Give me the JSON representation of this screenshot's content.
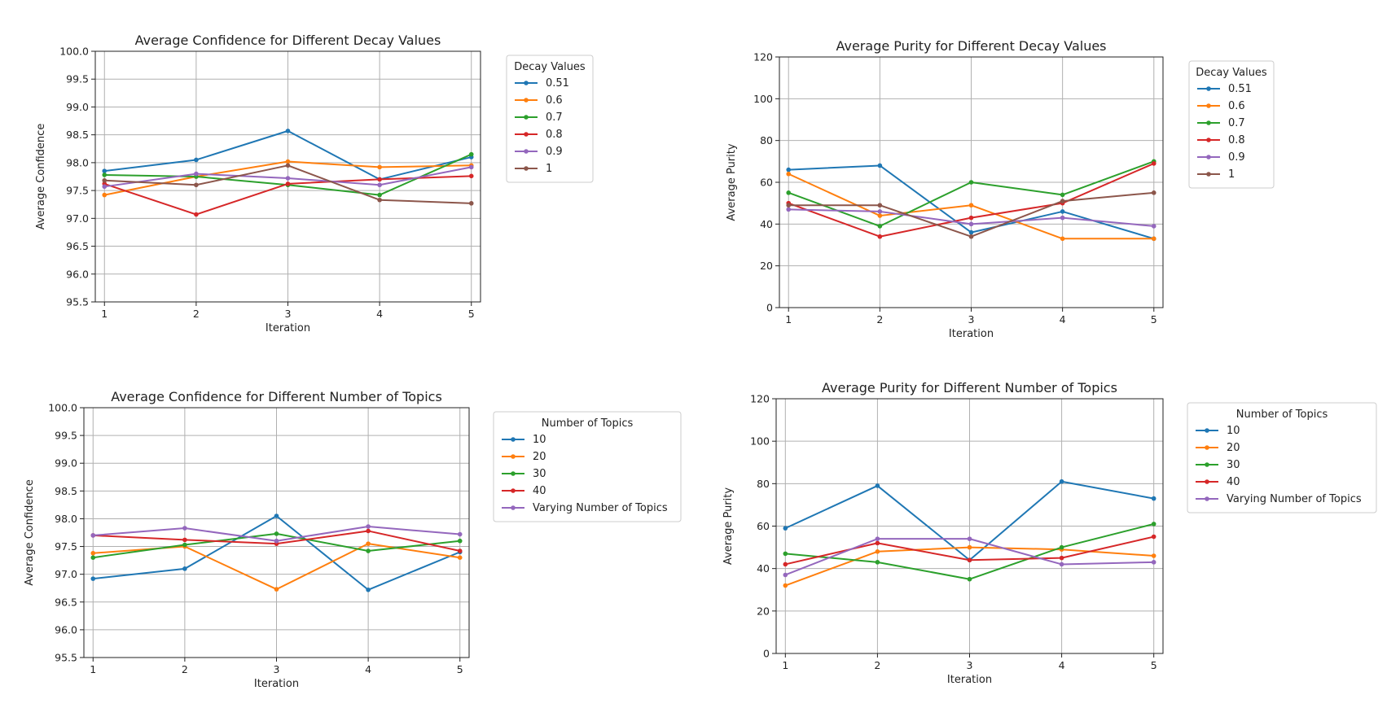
{
  "chart_data": [
    {
      "type": "line",
      "title": "Average Confidence for Different Decay Values",
      "xlabel": "Iteration",
      "ylabel": "Average Confidence",
      "x": [
        1,
        2,
        3,
        4,
        5
      ],
      "xlim": [
        0.9,
        5.1
      ],
      "ylim": [
        95.5,
        100.0
      ],
      "yticks": [
        "95.5",
        "96.0",
        "96.5",
        "97.0",
        "97.5",
        "98.0",
        "98.5",
        "99.0",
        "99.5",
        "100.0"
      ],
      "xticks": [
        "1",
        "2",
        "3",
        "4",
        "5"
      ],
      "grid": true,
      "legend_title": "Decay Values",
      "legend_position": "outside-right-top",
      "series": [
        {
          "name": "0.51",
          "color": "#1f77b4",
          "values": [
            97.85,
            98.05,
            98.57,
            97.7,
            98.1
          ]
        },
        {
          "name": "0.6",
          "color": "#ff7f0e",
          "values": [
            97.42,
            97.75,
            98.02,
            97.92,
            97.95
          ]
        },
        {
          "name": "0.7",
          "color": "#2ca02c",
          "values": [
            97.78,
            97.75,
            97.6,
            97.42,
            98.15
          ]
        },
        {
          "name": "0.8",
          "color": "#d62728",
          "values": [
            97.62,
            97.07,
            97.62,
            97.7,
            97.76
          ]
        },
        {
          "name": "0.9",
          "color": "#9467bd",
          "values": [
            97.57,
            97.8,
            97.72,
            97.6,
            97.92
          ]
        },
        {
          "name": "1",
          "color": "#8c564b",
          "values": [
            97.68,
            97.6,
            97.95,
            97.33,
            97.27
          ]
        }
      ]
    },
    {
      "type": "line",
      "title": "Average Purity for Different Decay Values",
      "xlabel": "Iteration",
      "ylabel": "Average Purity",
      "x": [
        1,
        2,
        3,
        4,
        5
      ],
      "xlim": [
        0.9,
        5.1
      ],
      "ylim": [
        0,
        120
      ],
      "yticks": [
        "0",
        "20",
        "40",
        "60",
        "80",
        "100",
        "120"
      ],
      "xticks": [
        "1",
        "2",
        "3",
        "4",
        "5"
      ],
      "grid": true,
      "legend_title": "Decay Values",
      "legend_position": "outside-right-top",
      "series": [
        {
          "name": "0.51",
          "color": "#1f77b4",
          "values": [
            66,
            68,
            36,
            46,
            33
          ]
        },
        {
          "name": "0.6",
          "color": "#ff7f0e",
          "values": [
            64,
            44,
            49,
            33,
            33
          ]
        },
        {
          "name": "0.7",
          "color": "#2ca02c",
          "values": [
            55,
            39,
            60,
            54,
            70
          ]
        },
        {
          "name": "0.8",
          "color": "#d62728",
          "values": [
            50,
            34,
            43,
            50,
            69
          ]
        },
        {
          "name": "0.9",
          "color": "#9467bd",
          "values": [
            47,
            46,
            40,
            43,
            39
          ]
        },
        {
          "name": "1",
          "color": "#8c564b",
          "values": [
            49,
            49,
            34,
            51,
            55
          ]
        }
      ]
    },
    {
      "type": "line",
      "title": "Average Confidence for Different Number of Topics",
      "xlabel": "Iteration",
      "ylabel": "Average Confidence",
      "x": [
        1,
        2,
        3,
        4,
        5
      ],
      "xlim": [
        0.9,
        5.1
      ],
      "ylim": [
        95.5,
        100.0
      ],
      "yticks": [
        "95.5",
        "96.0",
        "96.5",
        "97.0",
        "97.5",
        "98.0",
        "98.5",
        "99.0",
        "99.5",
        "100.0"
      ],
      "xticks": [
        "1",
        "2",
        "3",
        "4",
        "5"
      ],
      "grid": true,
      "legend_title": "Number of Topics",
      "legend_position": "outside-right-top",
      "series": [
        {
          "name": "10",
          "color": "#1f77b4",
          "values": [
            96.92,
            97.1,
            98.05,
            96.72,
            97.4
          ]
        },
        {
          "name": "20",
          "color": "#ff7f0e",
          "values": [
            97.38,
            97.5,
            96.73,
            97.55,
            97.3
          ]
        },
        {
          "name": "30",
          "color": "#2ca02c",
          "values": [
            97.3,
            97.53,
            97.73,
            97.42,
            97.6
          ]
        },
        {
          "name": "40",
          "color": "#d62728",
          "values": [
            97.7,
            97.62,
            97.55,
            97.78,
            97.42
          ]
        },
        {
          "name": "Varying Number of Topics",
          "color": "#9467bd",
          "values": [
            97.7,
            97.83,
            97.6,
            97.86,
            97.72
          ]
        }
      ]
    },
    {
      "type": "line",
      "title": "Average Purity for Different Number of Topics",
      "xlabel": "Iteration",
      "ylabel": "Average Purity",
      "x": [
        1,
        2,
        3,
        4,
        5
      ],
      "xlim": [
        0.9,
        5.1
      ],
      "ylim": [
        0,
        120
      ],
      "yticks": [
        "0",
        "20",
        "40",
        "60",
        "80",
        "100",
        "120"
      ],
      "xticks": [
        "1",
        "2",
        "3",
        "4",
        "5"
      ],
      "grid": true,
      "legend_title": "Number of Topics",
      "legend_position": "outside-right-top",
      "series": [
        {
          "name": "10",
          "color": "#1f77b4",
          "values": [
            59,
            79,
            44,
            81,
            73
          ]
        },
        {
          "name": "20",
          "color": "#ff7f0e",
          "values": [
            32,
            48,
            50,
            49,
            46
          ]
        },
        {
          "name": "30",
          "color": "#2ca02c",
          "values": [
            47,
            43,
            35,
            50,
            61
          ]
        },
        {
          "name": "40",
          "color": "#d62728",
          "values": [
            42,
            52,
            44,
            45,
            55
          ]
        },
        {
          "name": "Varying Number of Topics",
          "color": "#9467bd",
          "values": [
            37,
            54,
            54,
            42,
            43
          ]
        }
      ]
    }
  ]
}
